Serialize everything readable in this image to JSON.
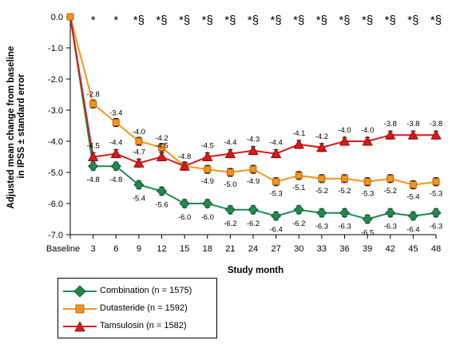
{
  "chart_data": {
    "type": "line",
    "xlabel": "Study month",
    "ylabel_line1": "Adjusted mean change from baseline",
    "ylabel_line2": "in IPSS ± standard error",
    "x": [
      "Baseline",
      "3",
      "6",
      "9",
      "12",
      "15",
      "18",
      "21",
      "24",
      "27",
      "30",
      "33",
      "36",
      "39",
      "42",
      "45",
      "48"
    ],
    "ylim": [
      -7.0,
      0.0
    ],
    "yticks": [
      0.0,
      -1.0,
      -2.0,
      -3.0,
      -4.0,
      -5.0,
      -6.0,
      -7.0
    ],
    "ytick_labels": [
      "0.0",
      "-1.0",
      "-2.0",
      "-3.0",
      "-4.0",
      "-5.0",
      "-6.0",
      "-7.0"
    ],
    "significance": [
      "",
      "*",
      "*",
      "*§",
      "*§",
      "*§",
      "*§",
      "*§",
      "*§",
      "*§",
      "*§",
      "*§",
      "*§",
      "*§",
      "*§",
      "*§",
      "*§"
    ],
    "series": [
      {
        "name": "Combination (n = 1575)",
        "marker": "diamond",
        "color": "#1f8a4c",
        "values": [
          0.0,
          -4.8,
          -4.8,
          -5.4,
          -5.6,
          -6.0,
          -6.0,
          -6.2,
          -6.2,
          -6.4,
          -6.2,
          -6.3,
          -6.3,
          -6.5,
          -6.3,
          -6.4,
          -6.3
        ],
        "labels": [
          "",
          "-4.8",
          "-4.8",
          "-5.4",
          "-5.6",
          "-6.0",
          "-6.0",
          "-6.2",
          "-6.2",
          "-6.4",
          "-6.2",
          "-6.3",
          "-6.3",
          "-6.5",
          "-6.3",
          "-6.4",
          "-6.3"
        ],
        "label_pos": "below"
      },
      {
        "name": "Dutasteride (n = 1592)",
        "marker": "square",
        "color": "#f7941d",
        "values": [
          0.0,
          -2.8,
          -3.4,
          -4.0,
          -4.2,
          -4.8,
          -4.9,
          -5.0,
          -4.9,
          -5.3,
          -5.1,
          -5.2,
          -5.2,
          -5.3,
          -5.2,
          -5.4,
          -5.3
        ],
        "labels": [
          "",
          "-2.8",
          "-3.4",
          "-4.0",
          "-4.2",
          "-4.8",
          "-4.9",
          "-5.0",
          "-4.9",
          "-5.3",
          "-5.1",
          "-5.2",
          "-5.2",
          "-5.3",
          "-5.2",
          "-5.4",
          "-5.3"
        ],
        "label_pos": "mixed"
      },
      {
        "name": "Tamsulosin (n = 1582)",
        "marker": "triangle",
        "color": "#d7191c",
        "values": [
          0.0,
          -4.5,
          -4.4,
          -4.7,
          -4.5,
          -4.8,
          -4.5,
          -4.4,
          -4.3,
          -4.4,
          -4.1,
          -4.2,
          -4.0,
          -4.0,
          -3.8,
          -3.8,
          -3.8
        ],
        "labels": [
          "",
          "-4.5",
          "-4.4",
          "-4.7",
          "-4.5",
          "",
          "-4.5",
          "-4.4",
          "-4.3",
          "-4.4",
          "-4.1",
          "-4.2",
          "-4.0",
          "-4.0",
          "-3.8",
          "-3.8",
          "-3.8"
        ],
        "label_pos": "above"
      }
    ]
  }
}
